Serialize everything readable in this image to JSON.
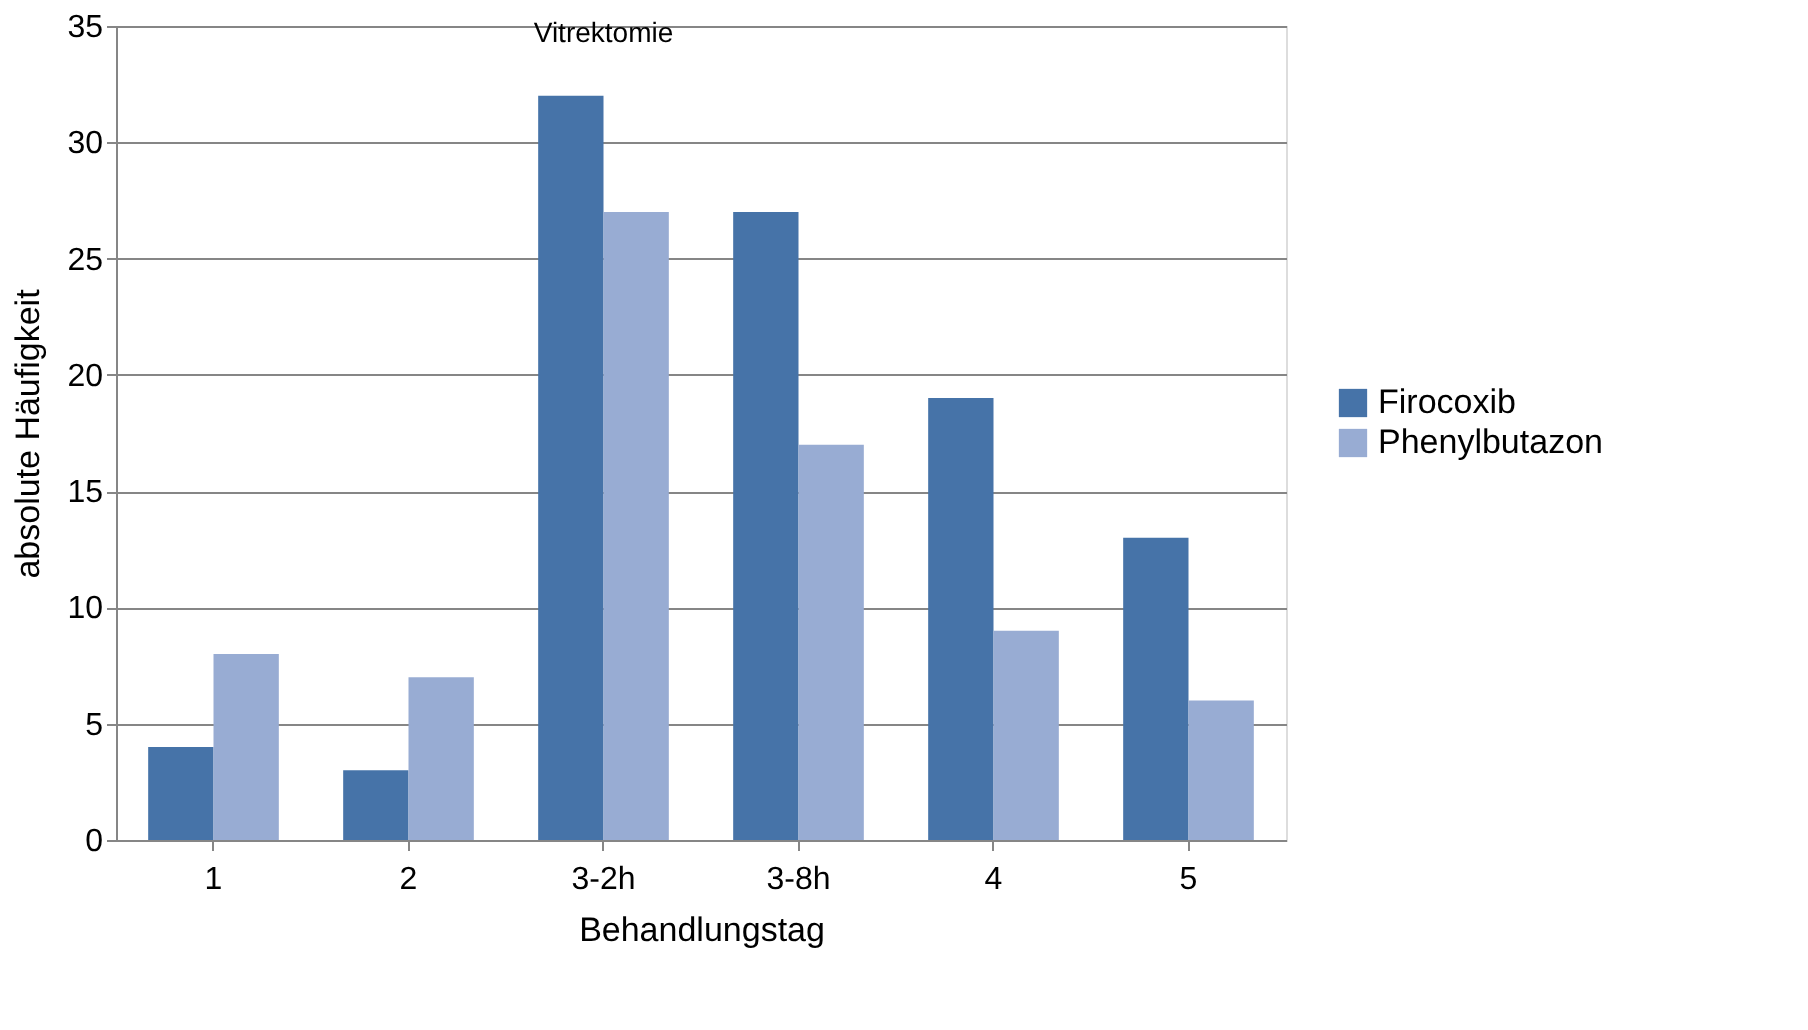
{
  "chart_data": {
    "type": "bar",
    "xlabel": "Behandlungstag",
    "ylabel": "absolute Häufigkeit",
    "categories": [
      "1",
      "2",
      "3-2h",
      "3-8h",
      "4",
      "5"
    ],
    "series": [
      {
        "name": "Firocoxib",
        "color": "#4673a8",
        "values": [
          4,
          3,
          32,
          27,
          19,
          13
        ]
      },
      {
        "name": "Phenylbutazon",
        "color": "#98acd3",
        "values": [
          8,
          7,
          27,
          17,
          9,
          6
        ]
      }
    ],
    "ylim": [
      0,
      35
    ],
    "yticks": [
      0,
      5,
      10,
      15,
      20,
      25,
      30,
      35
    ],
    "grid": "y",
    "legend": "right",
    "annotations": [
      "Vitrektomie"
    ]
  }
}
